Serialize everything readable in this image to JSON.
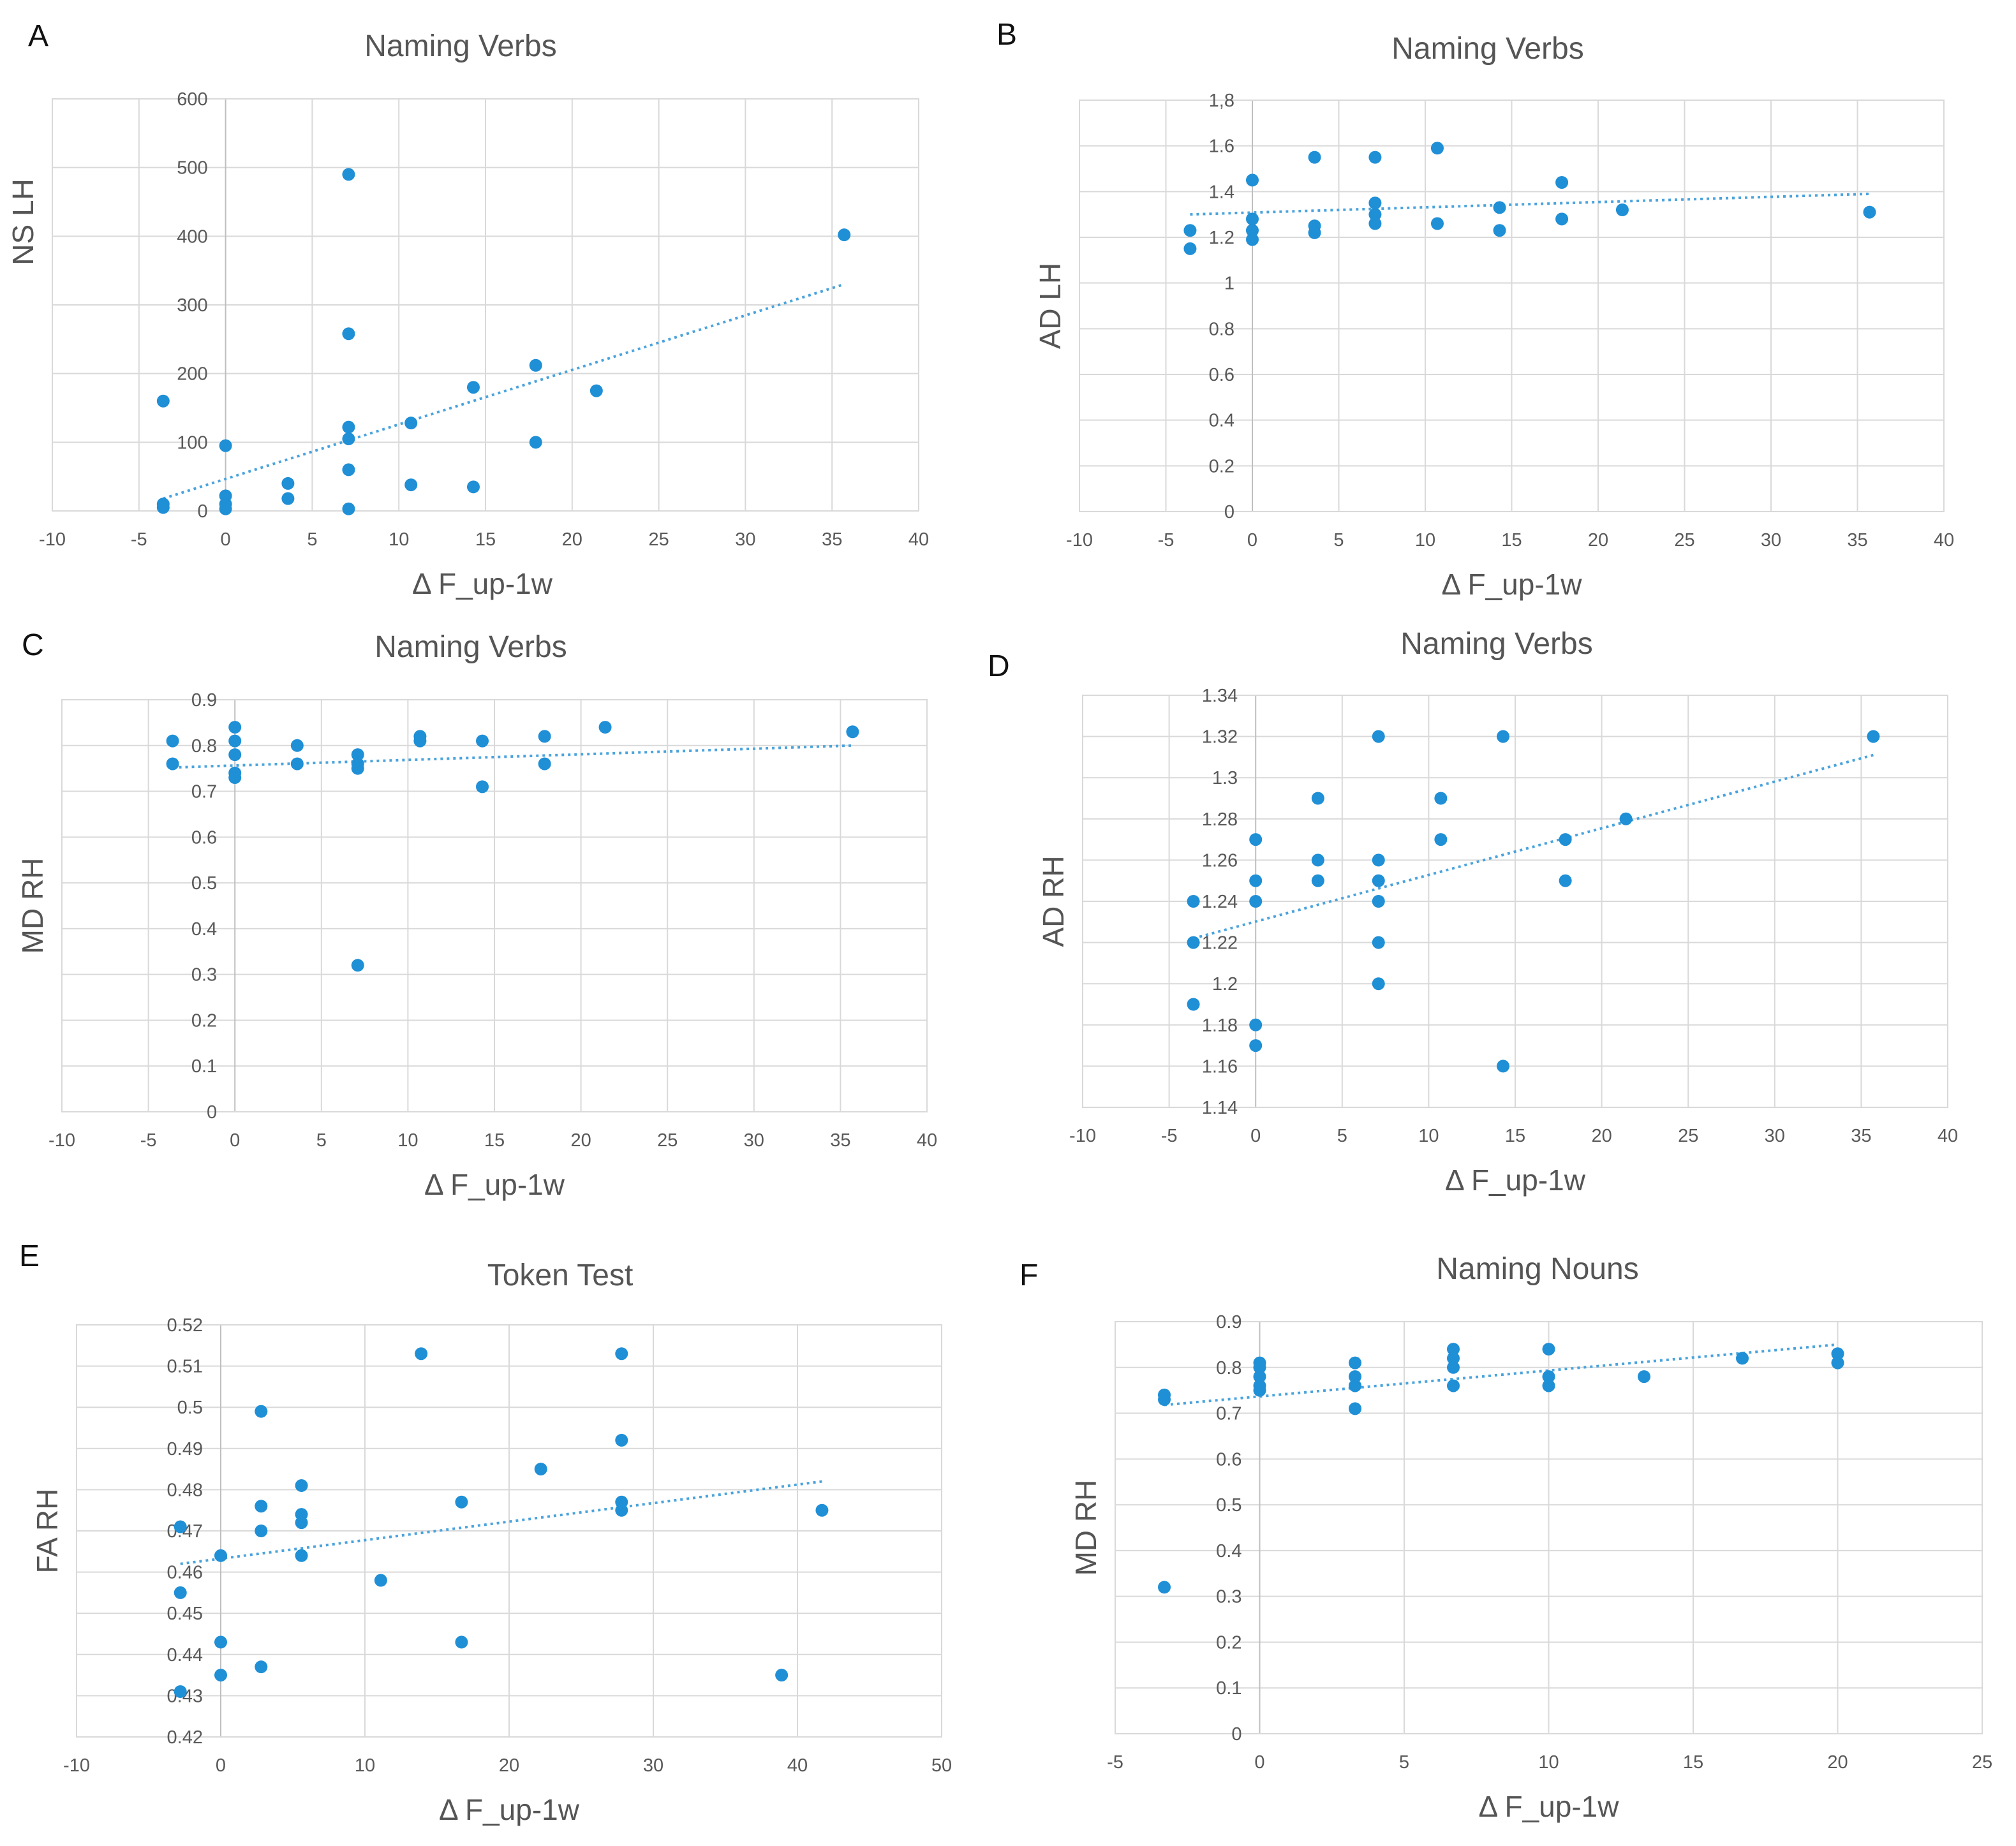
{
  "theme": {
    "point_color": "#1f8fd6",
    "trend_color": "#4aa3dc"
  },
  "chart_data": [
    {
      "panel": "A",
      "type": "scatter",
      "title": "Naming Verbs",
      "xlabel": "Δ F_up-1w",
      "ylabel": "NS LH",
      "xlim": [
        -10,
        40
      ],
      "ylim": [
        0,
        600
      ],
      "xticks": [
        -10,
        -5,
        0,
        5,
        10,
        15,
        20,
        25,
        30,
        35,
        40
      ],
      "xtick_labels": [
        "-10",
        "-5",
        "0",
        "5",
        "10",
        "15",
        "20",
        "25",
        "30",
        "35",
        "40"
      ],
      "yticks": [
        0,
        100,
        200,
        300,
        400,
        500,
        600
      ],
      "ytick_labels": [
        "0",
        "100",
        "200",
        "300",
        "400",
        "500",
        "600"
      ],
      "points": [
        [
          -3.6,
          10
        ],
        [
          -3.6,
          5
        ],
        [
          -3.6,
          160
        ],
        [
          0,
          95
        ],
        [
          0,
          22
        ],
        [
          0,
          10
        ],
        [
          0,
          3
        ],
        [
          3.6,
          40
        ],
        [
          3.6,
          18
        ],
        [
          7.1,
          490
        ],
        [
          7.1,
          258
        ],
        [
          7.1,
          122
        ],
        [
          7.1,
          105
        ],
        [
          7.1,
          60
        ],
        [
          7.1,
          3
        ],
        [
          10.7,
          128
        ],
        [
          10.7,
          38
        ],
        [
          14.3,
          180
        ],
        [
          14.3,
          35
        ],
        [
          17.9,
          212
        ],
        [
          17.9,
          100
        ],
        [
          21.4,
          175
        ],
        [
          35.7,
          402
        ]
      ],
      "trendline": {
        "x": [
          -3.6,
          35.7
        ],
        "y": [
          18,
          330
        ]
      }
    },
    {
      "panel": "B",
      "type": "scatter",
      "title": "Naming Verbs",
      "xlabel": "Δ F_up-1w",
      "ylabel": "AD LH",
      "xlim": [
        -10,
        40
      ],
      "ylim": [
        0,
        1.8
      ],
      "xticks": [
        -10,
        -5,
        0,
        5,
        10,
        15,
        20,
        25,
        30,
        35,
        40
      ],
      "xtick_labels": [
        "-10",
        "-5",
        "0",
        "5",
        "10",
        "15",
        "20",
        "25",
        "30",
        "35",
        "40"
      ],
      "yticks": [
        0,
        0.2,
        0.4,
        0.6,
        0.8,
        1,
        1.2,
        1.4,
        1.6,
        1.8
      ],
      "ytick_labels": [
        "0",
        "0.2",
        "0.4",
        "0.6",
        "0.8",
        "1",
        "1.2",
        "1.4",
        "1.6",
        "1,8"
      ],
      "points": [
        [
          -3.6,
          1.23
        ],
        [
          -3.6,
          1.15
        ],
        [
          0,
          1.45
        ],
        [
          0,
          1.28
        ],
        [
          0,
          1.23
        ],
        [
          0,
          1.19
        ],
        [
          3.6,
          1.55
        ],
        [
          3.6,
          1.25
        ],
        [
          3.6,
          1.22
        ],
        [
          7.1,
          1.55
        ],
        [
          7.1,
          1.35
        ],
        [
          7.1,
          1.3
        ],
        [
          7.1,
          1.26
        ],
        [
          10.7,
          1.59
        ],
        [
          10.7,
          1.26
        ],
        [
          14.3,
          1.33
        ],
        [
          14.3,
          1.23
        ],
        [
          17.9,
          1.44
        ],
        [
          17.9,
          1.28
        ],
        [
          21.4,
          1.32
        ],
        [
          35.7,
          1.31
        ]
      ],
      "trendline": {
        "x": [
          -3.6,
          35.7
        ],
        "y": [
          1.3,
          1.39
        ]
      }
    },
    {
      "panel": "C",
      "type": "scatter",
      "title": "Naming Verbs",
      "xlabel": "Δ F_up-1w",
      "ylabel": "MD RH",
      "xlim": [
        -10,
        40
      ],
      "ylim": [
        0,
        0.9
      ],
      "xticks": [
        -10,
        -5,
        0,
        5,
        10,
        15,
        20,
        25,
        30,
        35,
        40
      ],
      "xtick_labels": [
        "-10",
        "-5",
        "0",
        "5",
        "10",
        "15",
        "20",
        "25",
        "30",
        "35",
        "40"
      ],
      "yticks": [
        0,
        0.1,
        0.2,
        0.3,
        0.4,
        0.5,
        0.6,
        0.7,
        0.8,
        0.9
      ],
      "ytick_labels": [
        "0",
        "0.1",
        "0.2",
        "0.3",
        "0.4",
        "0.5",
        "0.6",
        "0.7",
        "0.8",
        "0.9"
      ],
      "points": [
        [
          -3.6,
          0.81
        ],
        [
          -3.6,
          0.76
        ],
        [
          0,
          0.84
        ],
        [
          0,
          0.81
        ],
        [
          0,
          0.78
        ],
        [
          0,
          0.74
        ],
        [
          0,
          0.73
        ],
        [
          3.6,
          0.8
        ],
        [
          3.6,
          0.76
        ],
        [
          7.1,
          0.78
        ],
        [
          7.1,
          0.76
        ],
        [
          7.1,
          0.75
        ],
        [
          7.1,
          0.32
        ],
        [
          10.7,
          0.82
        ],
        [
          10.7,
          0.81
        ],
        [
          14.3,
          0.81
        ],
        [
          14.3,
          0.71
        ],
        [
          17.9,
          0.82
        ],
        [
          17.9,
          0.76
        ],
        [
          21.4,
          0.84
        ],
        [
          35.7,
          0.83
        ]
      ],
      "trendline": {
        "x": [
          -3.6,
          35.7
        ],
        "y": [
          0.752,
          0.8
        ]
      }
    },
    {
      "panel": "D",
      "type": "scatter",
      "title": "Naming Verbs",
      "xlabel": "Δ F_up-1w",
      "ylabel": "AD RH",
      "xlim": [
        -10,
        40
      ],
      "ylim": [
        1.14,
        1.34
      ],
      "xticks": [
        -10,
        -5,
        0,
        5,
        10,
        15,
        20,
        25,
        30,
        35,
        40
      ],
      "xtick_labels": [
        "-10",
        "-5",
        "0",
        "5",
        "10",
        "15",
        "20",
        "25",
        "30",
        "35",
        "40"
      ],
      "yticks": [
        1.14,
        1.16,
        1.18,
        1.2,
        1.22,
        1.24,
        1.26,
        1.28,
        1.3,
        1.32,
        1.34
      ],
      "ytick_labels": [
        "1.14",
        "1.16",
        "1.18",
        "1.2",
        "1.22",
        "1.24",
        "1.26",
        "1.28",
        "1.3",
        "1.32",
        "1.34"
      ],
      "points": [
        [
          -3.6,
          1.24
        ],
        [
          -3.6,
          1.22
        ],
        [
          -3.6,
          1.19
        ],
        [
          0,
          1.27
        ],
        [
          0,
          1.25
        ],
        [
          0,
          1.24
        ],
        [
          0,
          1.18
        ],
        [
          0,
          1.17
        ],
        [
          3.6,
          1.29
        ],
        [
          3.6,
          1.26
        ],
        [
          3.6,
          1.25
        ],
        [
          7.1,
          1.32
        ],
        [
          7.1,
          1.26
        ],
        [
          7.1,
          1.25
        ],
        [
          7.1,
          1.24
        ],
        [
          7.1,
          1.22
        ],
        [
          7.1,
          1.2
        ],
        [
          10.7,
          1.29
        ],
        [
          10.7,
          1.27
        ],
        [
          14.3,
          1.32
        ],
        [
          14.3,
          1.16
        ],
        [
          17.9,
          1.27
        ],
        [
          17.9,
          1.25
        ],
        [
          21.4,
          1.28
        ],
        [
          35.7,
          1.32
        ]
      ],
      "trendline": {
        "x": [
          -3.6,
          35.7
        ],
        "y": [
          1.222,
          1.311
        ]
      }
    },
    {
      "panel": "E",
      "type": "scatter",
      "title": "Token Test",
      "xlabel": "Δ F_up-1w",
      "ylabel": "FA RH",
      "xlim": [
        -10,
        50
      ],
      "ylim": [
        0.42,
        0.52
      ],
      "xticks": [
        -10,
        0,
        10,
        20,
        30,
        40,
        50
      ],
      "xtick_labels": [
        "-10",
        "0",
        "10",
        "20",
        "30",
        "40",
        "50"
      ],
      "yticks": [
        0.42,
        0.43,
        0.44,
        0.45,
        0.46,
        0.47,
        0.48,
        0.49,
        0.5,
        0.51,
        0.52
      ],
      "ytick_labels": [
        "0.42",
        "0.43",
        "0.44",
        "0.45",
        "0.46",
        "0.47",
        "0.48",
        "0.49",
        "0.5",
        "0.51",
        "0.52"
      ],
      "points": [
        [
          -2.8,
          0.471
        ],
        [
          -2.8,
          0.455
        ],
        [
          -2.8,
          0.431
        ],
        [
          0,
          0.464
        ],
        [
          0,
          0.443
        ],
        [
          0,
          0.435
        ],
        [
          2.8,
          0.499
        ],
        [
          2.8,
          0.476
        ],
        [
          2.8,
          0.47
        ],
        [
          2.8,
          0.437
        ],
        [
          5.6,
          0.481
        ],
        [
          5.6,
          0.474
        ],
        [
          5.6,
          0.472
        ],
        [
          5.6,
          0.464
        ],
        [
          11.1,
          0.458
        ],
        [
          13.9,
          0.513
        ],
        [
          16.7,
          0.477
        ],
        [
          16.7,
          0.443
        ],
        [
          22.2,
          0.485
        ],
        [
          27.8,
          0.513
        ],
        [
          27.8,
          0.492
        ],
        [
          27.8,
          0.477
        ],
        [
          27.8,
          0.475
        ],
        [
          38.9,
          0.435
        ],
        [
          41.7,
          0.475
        ]
      ],
      "trendline": {
        "x": [
          -2.8,
          41.7
        ],
        "y": [
          0.462,
          0.482
        ]
      }
    },
    {
      "panel": "F",
      "type": "scatter",
      "title": "Naming Nouns",
      "xlabel": "Δ F_up-1w",
      "ylabel": "MD RH",
      "xlim": [
        -5,
        25
      ],
      "ylim": [
        0,
        0.9
      ],
      "xticks": [
        -5,
        0,
        5,
        10,
        15,
        20,
        25
      ],
      "xtick_labels": [
        "-5",
        "0",
        "5",
        "10",
        "15",
        "20",
        "25"
      ],
      "yticks": [
        0,
        0.1,
        0.2,
        0.3,
        0.4,
        0.5,
        0.6,
        0.7,
        0.8,
        0.9
      ],
      "ytick_labels": [
        "0",
        "0.1",
        "0.2",
        "0.3",
        "0.4",
        "0.5",
        "0.6",
        "0.7",
        "0.8",
        "0.9"
      ],
      "points": [
        [
          -3.3,
          0.74
        ],
        [
          -3.3,
          0.73
        ],
        [
          -3.3,
          0.32
        ],
        [
          0,
          0.81
        ],
        [
          0,
          0.8
        ],
        [
          0,
          0.78
        ],
        [
          0,
          0.76
        ],
        [
          0,
          0.75
        ],
        [
          3.3,
          0.81
        ],
        [
          3.3,
          0.78
        ],
        [
          3.3,
          0.76
        ],
        [
          3.3,
          0.71
        ],
        [
          6.7,
          0.84
        ],
        [
          6.7,
          0.82
        ],
        [
          6.7,
          0.8
        ],
        [
          6.7,
          0.76
        ],
        [
          10,
          0.84
        ],
        [
          10,
          0.78
        ],
        [
          10,
          0.76
        ],
        [
          13.3,
          0.78
        ],
        [
          16.7,
          0.82
        ],
        [
          20,
          0.83
        ],
        [
          20,
          0.81
        ]
      ],
      "trendline": {
        "x": [
          -3.3,
          20
        ],
        "y": [
          0.718,
          0.85
        ]
      }
    }
  ]
}
